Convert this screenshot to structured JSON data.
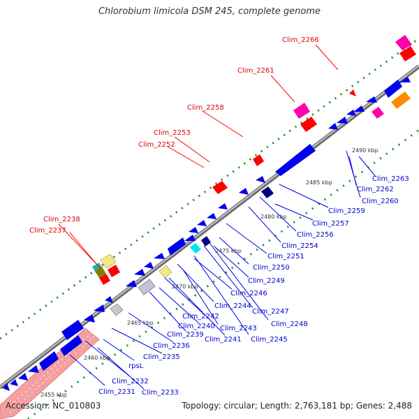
{
  "title": "Chlorobium limicola DSM 245, complete genome",
  "footer": {
    "accession": "Accession: NC_010803",
    "summary": "Topology: circular; Length: 2,763,181 bp; Genes: 2,488"
  },
  "colors": {
    "backbone": "#999999",
    "forward_label": "#dd0000",
    "reverse_label": "#0000cc",
    "reverse_gene": "#0000ee",
    "forward_gene": "#ff0000",
    "rrna": "#f4a0a0",
    "dots": "#228b22"
  },
  "ticks": [
    "2455 kbp",
    "2460 kbp",
    "2465 kbp",
    "2470 kbp",
    "2475 kbp",
    "2480 kbp",
    "2485 kbp",
    "2490 kbp"
  ],
  "forward_labels": [
    {
      "text": "Clim_2237"
    },
    {
      "text": "Clim_2238"
    },
    {
      "text": "Clim_2252"
    },
    {
      "text": "Clim_2253"
    },
    {
      "text": "Clim_2258"
    },
    {
      "text": "Clim_2261"
    },
    {
      "text": "Clim_2266"
    }
  ],
  "reverse_labels": [
    {
      "text": "Clim_2231"
    },
    {
      "text": "Clim_2232"
    },
    {
      "text": "Clim_2233"
    },
    {
      "text": "rpsL"
    },
    {
      "text": "Clim_2235"
    },
    {
      "text": "Clim_2236"
    },
    {
      "text": "Clim_2239"
    },
    {
      "text": "Clim_2240"
    },
    {
      "text": "Clim_2241"
    },
    {
      "text": "Clim_2242"
    },
    {
      "text": "Clim_2243"
    },
    {
      "text": "Clim_2244"
    },
    {
      "text": "Clim_2245"
    },
    {
      "text": "Clim_2246"
    },
    {
      "text": "Clim_2247"
    },
    {
      "text": "Clim_2248"
    },
    {
      "text": "Clim_2249"
    },
    {
      "text": "Clim_2250"
    },
    {
      "text": "Clim_2251"
    },
    {
      "text": "Clim_2254"
    },
    {
      "text": "Clim_2256"
    },
    {
      "text": "Clim_2257"
    },
    {
      "text": "Clim_2259"
    },
    {
      "text": "Clim_2260"
    },
    {
      "text": "Clim_2262"
    },
    {
      "text": "Clim_2263"
    }
  ]
}
